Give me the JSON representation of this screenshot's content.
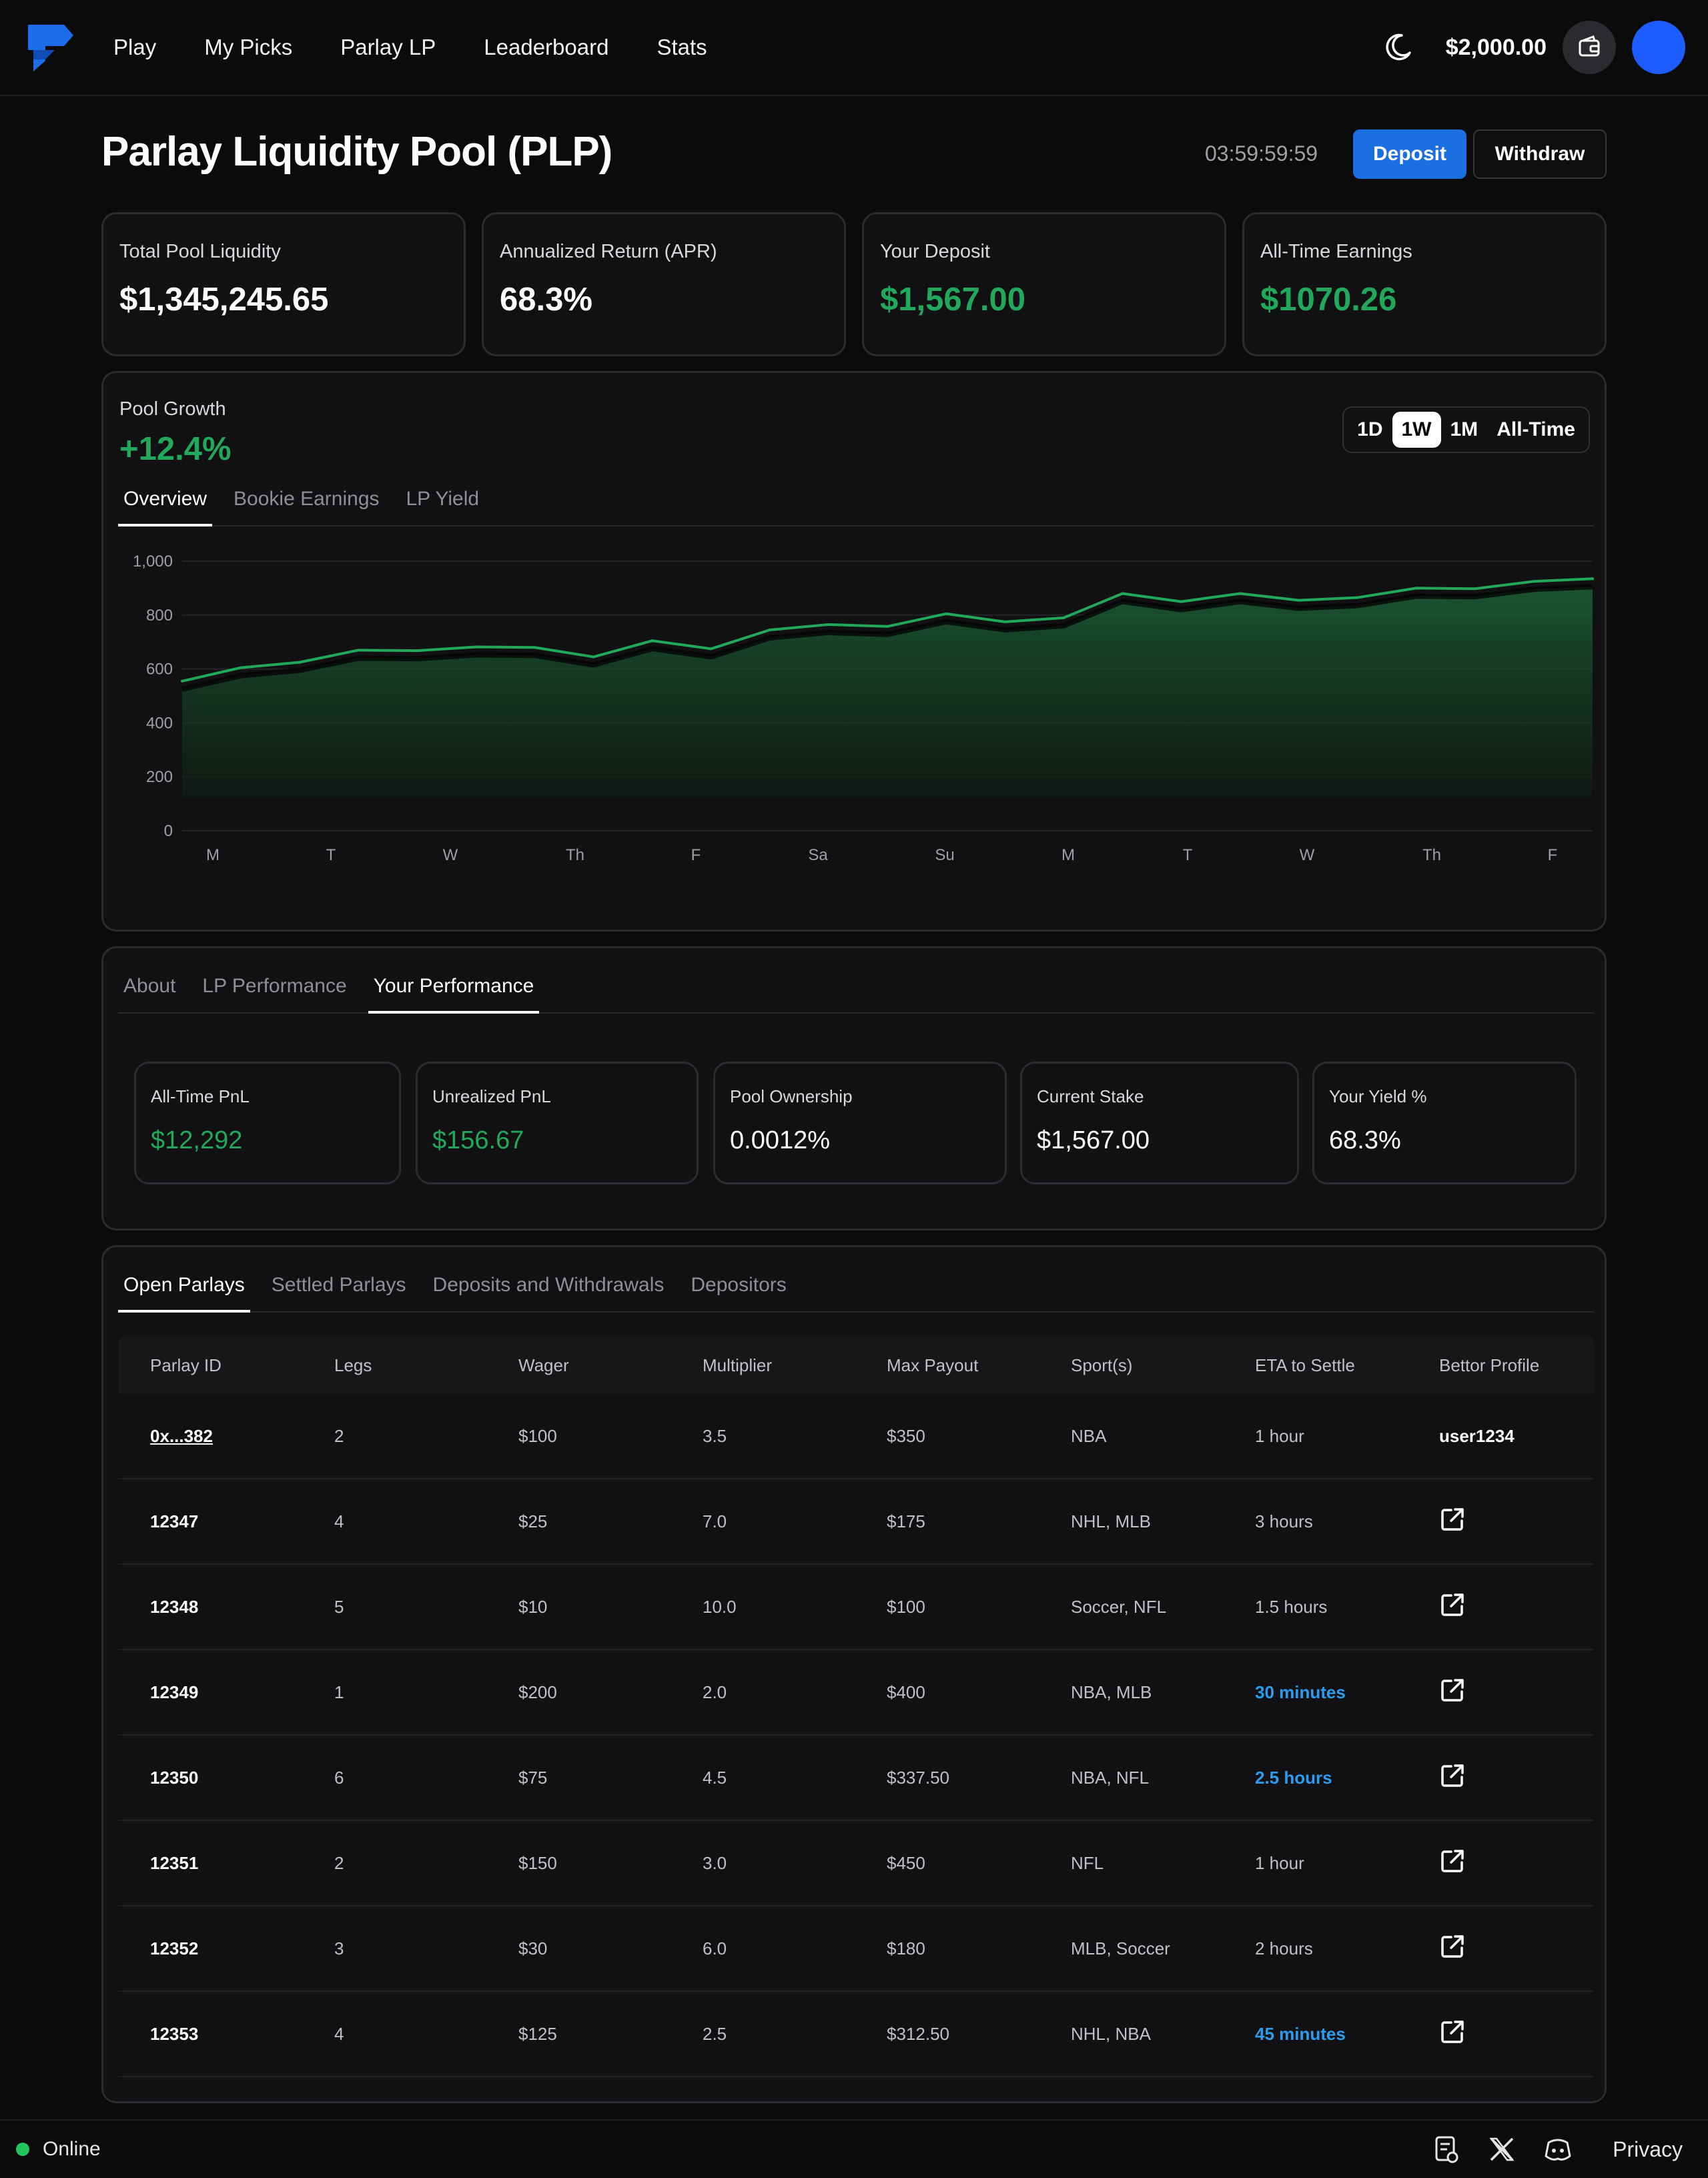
{
  "nav": {
    "links": [
      "Play",
      "My Picks",
      "Parlay LP",
      "Leaderboard",
      "Stats"
    ],
    "balance": "$2,000.00"
  },
  "header": {
    "title": "Parlay Liquidity Pool (PLP)",
    "timer": "03:59:59:59",
    "deposit_label": "Deposit",
    "withdraw_label": "Withdraw"
  },
  "stats": [
    {
      "label": "Total Pool Liquidity",
      "value": "$1,345,245.65"
    },
    {
      "label": "Annualized Return (APR)",
      "value": "68.3%"
    },
    {
      "label": "Your Deposit",
      "value": "$1,567.00"
    },
    {
      "label": "All-Time Earnings",
      "value": "$1070.26"
    }
  ],
  "pool_growth": {
    "label": "Pool Growth",
    "value": "+12.4%",
    "ranges": [
      "1D",
      "1W",
      "1M",
      "All-Time"
    ],
    "active_range": "1W",
    "tabs": [
      "Overview",
      "Bookie Earnings",
      "LP Yield"
    ],
    "active_tab": "Overview"
  },
  "chart_data": {
    "type": "area",
    "ylim": [
      0,
      1000
    ],
    "yticks": [
      "0",
      "200",
      "400",
      "600",
      "800",
      "1,000"
    ],
    "xticks": [
      "M",
      "T",
      "W",
      "Th",
      "F",
      "Sa",
      "Su",
      "M",
      "T",
      "W",
      "Th",
      "F"
    ],
    "grid": true,
    "color": "#22a85a",
    "values": [
      555,
      605,
      625,
      670,
      668,
      682,
      680,
      645,
      705,
      675,
      745,
      765,
      758,
      805,
      775,
      790,
      880,
      850,
      880,
      855,
      865,
      900,
      898,
      925,
      935
    ]
  },
  "performance": {
    "tabs": [
      "About",
      "LP Performance",
      "Your Performance"
    ],
    "active_tab": "Your Performance",
    "cards": [
      {
        "label": "All-Time PnL",
        "value": "$12,292"
      },
      {
        "label": "Unrealized PnL",
        "value": "$156.67"
      },
      {
        "label": "Pool Ownership",
        "value": "0.0012%"
      },
      {
        "label": "Current Stake",
        "value": "$1,567.00"
      },
      {
        "label": "Your Yield %",
        "value": "68.3%"
      }
    ]
  },
  "parlays": {
    "tabs": [
      "Open Parlays",
      "Settled Parlays",
      "Deposits and Withdrawals",
      "Depositors"
    ],
    "active_tab": "Open Parlays",
    "columns": [
      "Parlay ID",
      "Legs",
      "Wager",
      "Multiplier",
      "Max Payout",
      "Sport(s)",
      "ETA to Settle",
      "Bettor Profile"
    ],
    "rows": [
      {
        "id": "0x...382",
        "legs": "2",
        "wager": "$100",
        "mult": "3.5",
        "payout": "$350",
        "sports": "NBA",
        "eta": "1 hour",
        "profile": "user1234"
      },
      {
        "id": "12347",
        "legs": "4",
        "wager": "$25",
        "mult": "7.0",
        "payout": "$175",
        "sports": "NHL, MLB",
        "eta": "3 hours",
        "profile": ""
      },
      {
        "id": "12348",
        "legs": "5",
        "wager": "$10",
        "mult": "10.0",
        "payout": "$100",
        "sports": "Soccer, NFL",
        "eta": "1.5 hours",
        "profile": ""
      },
      {
        "id": "12349",
        "legs": "1",
        "wager": "$200",
        "mult": "2.0",
        "payout": "$400",
        "sports": "NBA, MLB",
        "eta": "30 minutes",
        "profile": ""
      },
      {
        "id": "12350",
        "legs": "6",
        "wager": "$75",
        "mult": "4.5",
        "payout": "$337.50",
        "sports": "NBA, NFL",
        "eta": "2.5 hours",
        "profile": ""
      },
      {
        "id": "12351",
        "legs": "2",
        "wager": "$150",
        "mult": "3.0",
        "payout": "$450",
        "sports": "NFL",
        "eta": "1 hour",
        "profile": ""
      },
      {
        "id": "12352",
        "legs": "3",
        "wager": "$30",
        "mult": "6.0",
        "payout": "$180",
        "sports": "MLB, Soccer",
        "eta": "2 hours",
        "profile": ""
      },
      {
        "id": "12353",
        "legs": "4",
        "wager": "$125",
        "mult": "2.5",
        "payout": "$312.50",
        "sports": "NHL, NBA",
        "eta": "45 minutes",
        "profile": ""
      }
    ],
    "highlight_eta_rows": [
      3,
      4,
      7
    ]
  },
  "footer": {
    "status": "Online",
    "privacy": "Privacy"
  },
  "colors": {
    "accent": "#1b6fe0",
    "positive": "#22a85a",
    "link_blue": "#2b9cf0",
    "background": "#0b0b0c",
    "card": "#111113"
  }
}
